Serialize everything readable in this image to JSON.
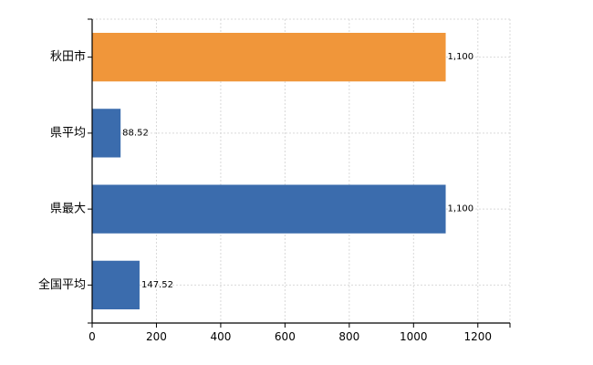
{
  "chart_data": {
    "type": "bar",
    "orientation": "horizontal",
    "categories": [
      "秋田市",
      "県平均",
      "県最大",
      "全国平均"
    ],
    "values": [
      1100,
      88.52,
      1100,
      147.52
    ],
    "value_labels": [
      "1,100",
      "88.52",
      "1,100",
      "147.52"
    ],
    "bar_colors": [
      "#F0963A",
      "#3B6CAD",
      "#3B6CAD",
      "#3B6CAD"
    ],
    "xlim": [
      0,
      1300
    ],
    "xticks": [
      0,
      200,
      400,
      600,
      800,
      1000,
      1200
    ],
    "grid": true
  }
}
